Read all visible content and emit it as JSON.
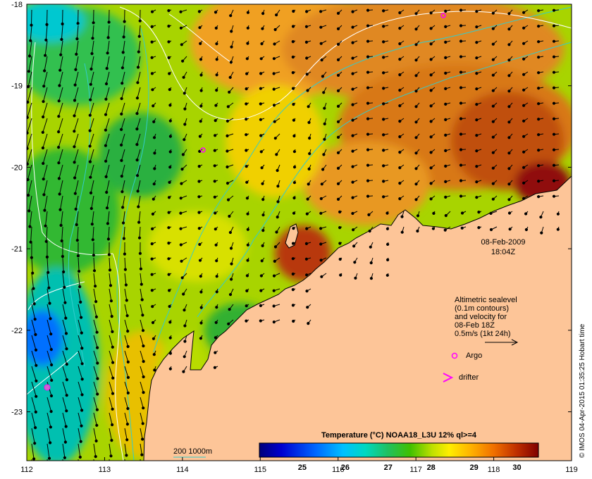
{
  "map": {
    "lon_ticks": [
      "112",
      "113",
      "114",
      "115",
      "116",
      "117",
      "118",
      "119"
    ],
    "lat_ticks": [
      "-18",
      "-19",
      "-20",
      "-21",
      "-22",
      "-23"
    ],
    "lon_range": [
      112,
      119
    ],
    "lat_range": [
      -23.6,
      -18
    ]
  },
  "annotation": {
    "date": "08-Feb-2009",
    "time": "18:04Z"
  },
  "legend": {
    "lines": [
      "Altimetric sealevel",
      "(0.1m contours)",
      "and velocity for",
      "08-Feb 18Z",
      "0.5m/s (1kt 24h)"
    ],
    "argo_label": "Argo",
    "drifter_label": "drifter",
    "argo_color": "#ff00ff",
    "drifter_color": "#ff00ff"
  },
  "bathymetry": {
    "label": "200  1000m",
    "color": "#33cccc"
  },
  "colorbar": {
    "title": "Temperature (°C) NOAA18_L3U 12% ql>=4",
    "ticks": [
      "25",
      "26",
      "27",
      "28",
      "29",
      "30"
    ],
    "range": [
      24.0,
      30.5
    ]
  },
  "credit": "© IMOS 04-Apr-2015 01:35:25 Hobart time",
  "colors": {
    "land": "#fdc598",
    "contour": "#ffffff"
  }
}
